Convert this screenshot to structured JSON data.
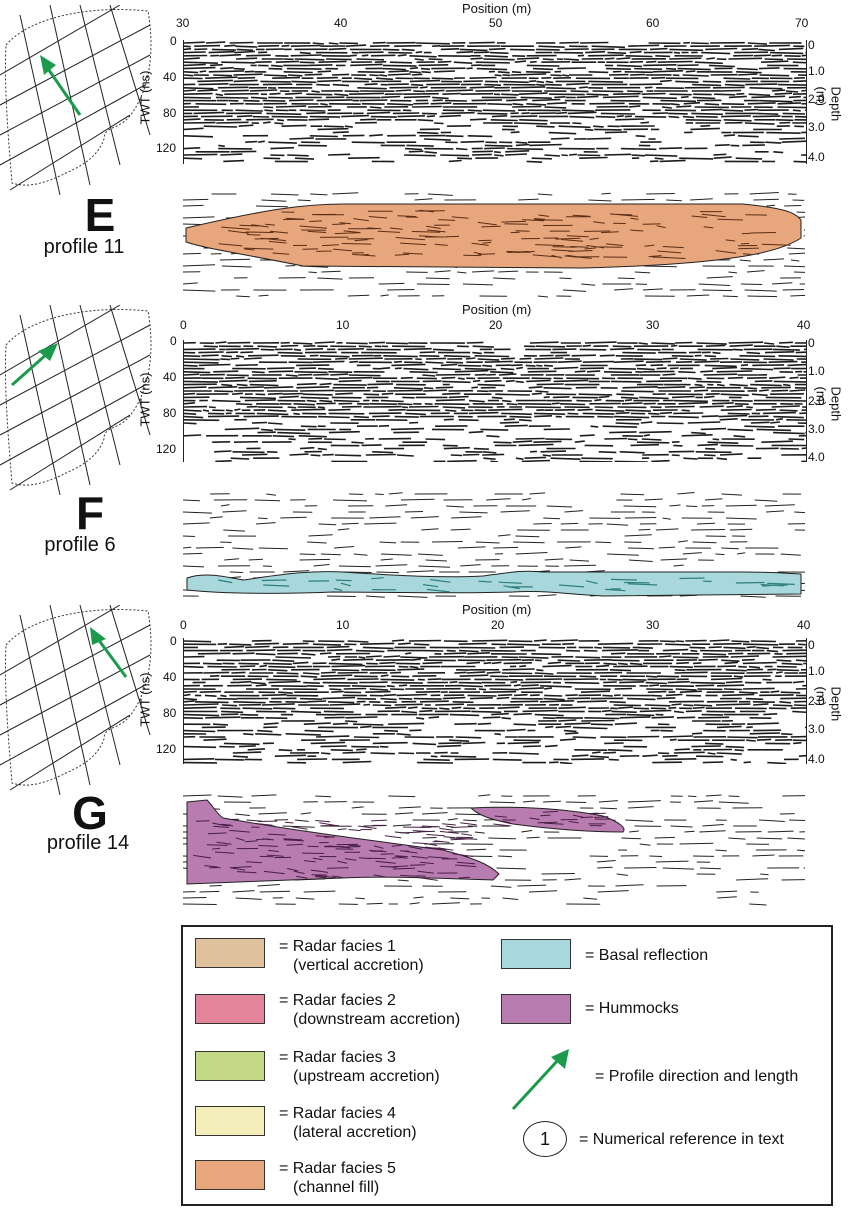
{
  "panels": [
    {
      "letter": "E",
      "profile": "profile 11",
      "position_title": "Position (m)",
      "x_ticks": [
        "30",
        "40",
        "50",
        "60",
        "70"
      ],
      "twt_title": "TWT (ns)",
      "twt_ticks": [
        "0",
        "40",
        "80",
        "120"
      ],
      "depth_title": "Depth (m)",
      "depth_ticks": [
        "0",
        "1.0",
        "2.0",
        "3.0",
        "4.0"
      ],
      "facies_color": "#e8a67c"
    },
    {
      "letter": "F",
      "profile": "profile 6",
      "position_title": "Position (m)",
      "x_ticks": [
        "0",
        "10",
        "20",
        "30",
        "40"
      ],
      "twt_title": "TWT (ns)",
      "twt_ticks": [
        "0",
        "40",
        "80",
        "120"
      ],
      "depth_title": "Depth (m)",
      "depth_ticks": [
        "0",
        "1.0",
        "2.0",
        "3.0",
        "4.0"
      ],
      "facies_color": "#a8d8dc"
    },
    {
      "letter": "G",
      "profile": "profile 14",
      "position_title": "Position (m)",
      "x_ticks": [
        "0",
        "10",
        "20",
        "30",
        "40"
      ],
      "twt_title": "TWT (ns)",
      "twt_ticks": [
        "0",
        "40",
        "80",
        "120"
      ],
      "depth_title": "Depth (m)",
      "depth_ticks": [
        "0",
        "1.0",
        "2.0",
        "3.0",
        "4.0"
      ],
      "facies_color": "#b87cb0"
    }
  ],
  "legend": {
    "items": [
      {
        "line1": "= Radar facies 1",
        "line2": "(vertical accretion)",
        "color": "#dfc19e"
      },
      {
        "line1": "= Radar facies 2",
        "line2": "(downstream accretion)",
        "color": "#e4849a"
      },
      {
        "line1": "= Radar facies 3",
        "line2": "(upstream accretion)",
        "color": "#c3d987"
      },
      {
        "line1": "= Radar facies 4",
        "line2": "(lateral accretion)",
        "color": "#f3edb9"
      },
      {
        "line1": "= Radar facies 5",
        "line2": "(channel fill)",
        "color": "#e8a67c"
      }
    ],
    "basal": {
      "label": "= Basal reflection",
      "color": "#a8d8dc"
    },
    "hummocks": {
      "label": "= Hummocks",
      "color": "#b87cb0"
    },
    "arrow": {
      "label": "= Profile direction and length",
      "color": "#1a9a4a"
    },
    "numref": {
      "symbol": "1",
      "label": "= Numerical reference in text"
    }
  }
}
